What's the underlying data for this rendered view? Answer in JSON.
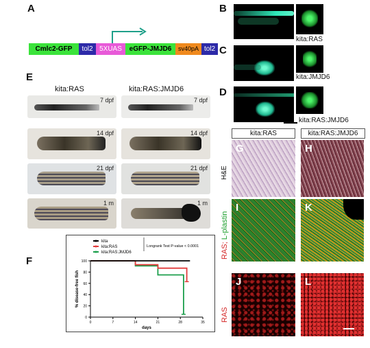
{
  "panels": {
    "A": {
      "letter": "A",
      "construct": {
        "cmlc2": "Cmlc2-GFP",
        "tol2_left": "tol2",
        "uas": "5XUAS",
        "egfp": "eGFP-JMJD6",
        "sv40": "sv40pA",
        "tol2_right": "tol2"
      }
    },
    "B": {
      "letter": "B",
      "label": "kita:RAS"
    },
    "C": {
      "letter": "C",
      "label": "kita:JMJD6"
    },
    "D": {
      "letter": "D",
      "label": "kita:RAS:JMJD6"
    },
    "E": {
      "letter": "E",
      "col_left": "kita:RAS",
      "col_right": "kita:RAS:JMJD6",
      "stages": [
        "7 dpf",
        "14 dpf",
        "21 dpf",
        "1 m"
      ]
    },
    "F": {
      "letter": "F"
    },
    "G": {
      "letter": "G"
    },
    "H": {
      "letter": "H"
    },
    "I": {
      "letter": "I"
    },
    "K": {
      "letter": "K"
    },
    "J": {
      "letter": "J"
    },
    "L": {
      "letter": "L"
    },
    "histo": {
      "col_left": "kita:RAS",
      "col_right": "kita:RAS:JMJD6",
      "row1": "H&E",
      "row2_a": "RAS;",
      "row2_b": " L-plastin",
      "row3": "RAS"
    }
  },
  "colors": {
    "green": "#3be33b",
    "blue": "#2d2aa8",
    "magenta": "#e85ad8",
    "orange": "#f08a1e",
    "teal": "#1fa08a",
    "ras_red": "#e23c3c",
    "jmjd6_green": "#1b9e4b",
    "kita_black": "#000000"
  },
  "chart_data": {
    "type": "line",
    "x_label": "days",
    "y_label": "% disease-free fish",
    "x_ticks": [
      0,
      7,
      14,
      21,
      28,
      35
    ],
    "y_ticks": [
      0,
      20,
      40,
      60,
      80,
      100
    ],
    "xlim": [
      0,
      35
    ],
    "ylim": [
      0,
      100
    ],
    "annotation": "Longrank Test P-value < 0.0001",
    "legend_position": "top-left",
    "series": [
      {
        "name": "kita",
        "color": "#000000",
        "points": [
          [
            0,
            100
          ],
          [
            31,
            100
          ]
        ]
      },
      {
        "name": "kita:RAS",
        "color": "#e23c3c",
        "points": [
          [
            0,
            100
          ],
          [
            14,
            100
          ],
          [
            14,
            93
          ],
          [
            21,
            93
          ],
          [
            21,
            87
          ],
          [
            30,
            87
          ],
          [
            30,
            63
          ]
        ]
      },
      {
        "name": "kita:RAS:JMJD6",
        "color": "#1b9e4b",
        "points": [
          [
            0,
            100
          ],
          [
            14,
            100
          ],
          [
            14,
            91
          ],
          [
            21,
            91
          ],
          [
            21,
            75
          ],
          [
            29,
            75
          ],
          [
            29,
            5
          ]
        ]
      }
    ]
  }
}
